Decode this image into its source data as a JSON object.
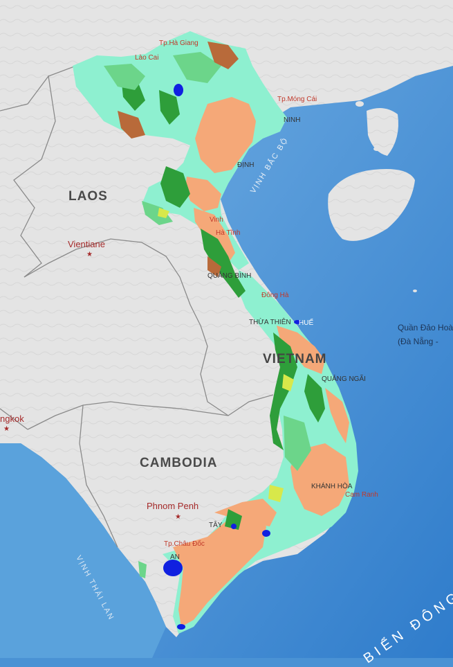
{
  "labels": {
    "laos": "LAOS",
    "vientiane": "Vientiane",
    "cambodia": "CAMBODIA",
    "phnom_penh": "Phnom Penh",
    "bangkok": "ngkok",
    "vietnam": "VIETNAM",
    "tp_ha_giang": "Tp.Hà Giang",
    "lao_cai": "Lào Cai",
    "mong_cai": "Tp.Móng Cái",
    "vinh_bac_bo": "VỊNH BẮC BỘ",
    "ninh": "NINH",
    "dinh": "ĐỊNH",
    "vinh": "Vinh",
    "ha_tinh": "Hà Tĩnh",
    "quang_binh": "QUẢNG BÌNH",
    "dong_ha": "Đông Hà",
    "hue": "HUẾ",
    "thua_thien": "THỪA THIÊN",
    "quang_ngai": "QUẢNG NGÃI",
    "khanh_hoa": "KHÁNH HÒA",
    "cam_ranh": "Cam Ranh",
    "chau_doc": "Tp.Châu Đốc",
    "tay_ninh": "TÂY",
    "an_giang": "AN",
    "islands": "Quần Đảo Hoàng Sa",
    "islands_sub": "(Đà Nẵng -",
    "vinh_thai_lan": "VỊNH THÁI LAN",
    "bien_dong": "BIỂN ĐÔNG"
  },
  "colors": {
    "sea": "#4a92d4",
    "land": "#e6e6e6",
    "agriculture": "#f5a878",
    "forest_dense": "#2e9e3a",
    "forest_mixed": "#6cd58a",
    "shrub": "#8ef0d0",
    "water": "#1020e0",
    "bare": "#b86a3a"
  }
}
